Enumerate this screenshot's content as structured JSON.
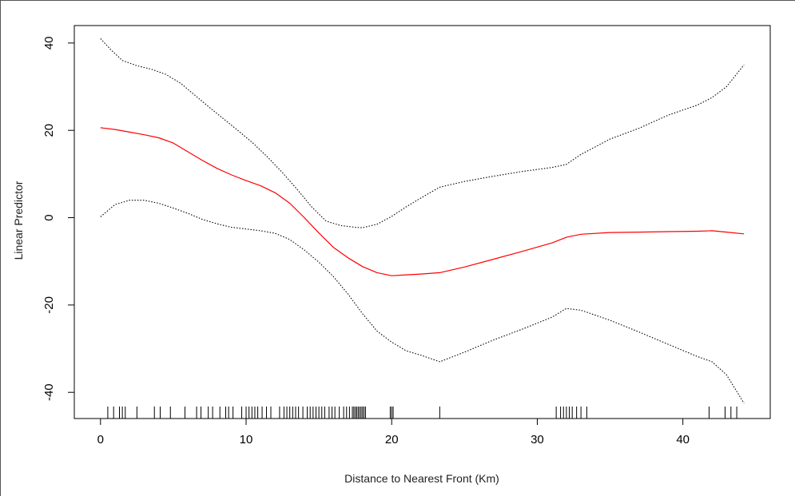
{
  "chart_data": {
    "type": "line",
    "title": "",
    "xlabel": "Distance to Nearest Front (Km)",
    "ylabel": "Linear Predictor",
    "xlim": [
      -1.8,
      46
    ],
    "ylim": [
      -46,
      44
    ],
    "x_ticks": [
      0,
      10,
      20,
      30,
      40
    ],
    "x_tick_labels": [
      "0",
      "10",
      "20",
      "30",
      "40"
    ],
    "y_ticks": [
      -40,
      -20,
      0,
      20,
      40
    ],
    "y_tick_labels": [
      "-40",
      "-20",
      "0",
      "20",
      "40"
    ],
    "grid": false,
    "colors": {
      "fit": "#ff0000",
      "band": "#000000"
    },
    "series": [
      {
        "style": "solid",
        "color": "#ff0000",
        "x": [
          0,
          1,
          2,
          3,
          4,
          5,
          6,
          7,
          8,
          9,
          10,
          11,
          12,
          13,
          14,
          15,
          16,
          17,
          18,
          19,
          20,
          21,
          22,
          23.3,
          25,
          27,
          29,
          31,
          32,
          33,
          35,
          37,
          39,
          41,
          42,
          43,
          44.2
        ],
        "y": [
          20.6,
          20.2,
          19.6,
          19.0,
          18.3,
          17.1,
          15.1,
          13.1,
          11.3,
          9.8,
          8.5,
          7.3,
          5.7,
          3.3,
          0,
          -3.5,
          -6.8,
          -9.2,
          -11.2,
          -12.6,
          -13.3,
          -13.1,
          -12.9,
          -12.6,
          -11.3,
          -9.5,
          -7.7,
          -5.8,
          -4.5,
          -3.8,
          -3.4,
          -3.3,
          -3.2,
          -3.1,
          -3.0,
          -3.3,
          -3.7
        ]
      },
      {
        "style": "dotted",
        "color": "#000000",
        "x": [
          0,
          0.7,
          1.5,
          2.5,
          3.5,
          4.5,
          5.5,
          6.5,
          7.5,
          8.5,
          9.5,
          10.5,
          11.5,
          12.5,
          13.5,
          14.5,
          15.5,
          16.5,
          17.5,
          18,
          19,
          20,
          21,
          22,
          23.3,
          25,
          27,
          29,
          31,
          32,
          33,
          35,
          37,
          39,
          41,
          42,
          43,
          44.2
        ],
        "y": [
          41,
          38.5,
          36,
          34.8,
          34.0,
          32.8,
          30.8,
          28.0,
          25.2,
          22.5,
          19.8,
          17.0,
          13.8,
          10.3,
          6.5,
          2.5,
          -0.8,
          -1.8,
          -2.2,
          -2.3,
          -1.5,
          0.3,
          2.5,
          4.5,
          7.0,
          8.3,
          9.5,
          10.6,
          11.5,
          12.2,
          14.5,
          18.0,
          20.5,
          23.5,
          25.8,
          27.5,
          30.0,
          35.0
        ]
      },
      {
        "style": "dotted",
        "color": "#000000",
        "x": [
          0,
          1,
          2,
          3,
          4,
          5,
          6,
          7,
          8,
          9,
          10,
          11,
          12,
          13,
          14,
          15,
          16,
          17,
          18,
          19,
          20,
          21,
          22,
          23.3,
          25,
          27,
          29,
          31,
          32,
          33,
          35,
          37,
          39,
          41,
          42,
          43,
          44.2
        ],
        "y": [
          0.2,
          3.0,
          4.0,
          4.0,
          3.3,
          2.2,
          1.0,
          -0.4,
          -1.4,
          -2.2,
          -2.6,
          -3.0,
          -3.6,
          -5.0,
          -7.4,
          -10.2,
          -13.5,
          -17.5,
          -22.0,
          -26.0,
          -28.5,
          -30.5,
          -31.5,
          -33.0,
          -30.8,
          -28.0,
          -25.5,
          -22.8,
          -20.8,
          -21.2,
          -23.5,
          -26.2,
          -29.0,
          -31.8,
          -33.0,
          -36.0,
          -42.5
        ]
      }
    ],
    "rug": [
      0.5,
      0.9,
      1.3,
      1.5,
      1.7,
      2.5,
      3.7,
      4.1,
      4.8,
      5.8,
      6.6,
      6.9,
      7.4,
      7.7,
      8.2,
      8.6,
      8.8,
      9.1,
      9.7,
      10.0,
      10.2,
      10.4,
      10.6,
      10.8,
      11.1,
      11.4,
      11.7,
      12.3,
      12.6,
      12.8,
      13.0,
      13.2,
      13.4,
      13.6,
      13.9,
      14.2,
      14.4,
      14.6,
      14.8,
      15.0,
      15.2,
      15.4,
      15.7,
      15.9,
      16.1,
      16.4,
      16.7,
      16.9,
      17.1,
      17.3,
      17.4,
      17.5,
      17.6,
      17.7,
      17.8,
      17.9,
      18.0,
      18.1,
      18.2,
      19.9,
      20.0,
      20.1,
      23.3,
      31.3,
      31.6,
      31.8,
      32.0,
      32.2,
      32.4,
      32.7,
      33.0,
      33.4,
      41.8,
      42.9,
      43.3,
      43.7
    ]
  }
}
